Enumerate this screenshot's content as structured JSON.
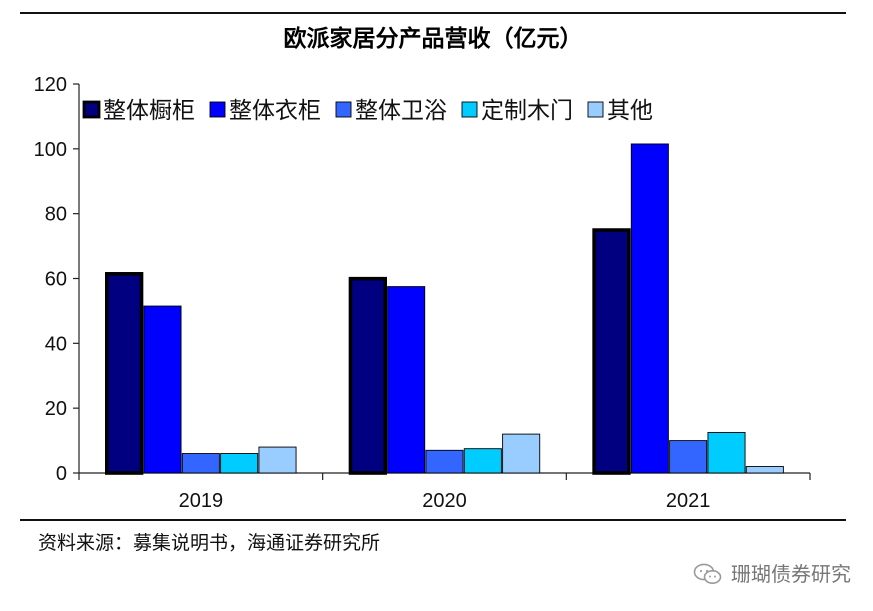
{
  "chart_data": {
    "type": "bar",
    "title": "欧派家居分产品营收（亿元）",
    "xlabel": "",
    "ylabel": "",
    "categories": [
      "2019",
      "2020",
      "2021"
    ],
    "ylim": [
      0,
      120
    ],
    "yticks": [
      0,
      20,
      40,
      60,
      80,
      100,
      120
    ],
    "grid": false,
    "legend_position": "top-left",
    "series": [
      {
        "name": "整体橱柜",
        "color": "#000080",
        "values": [
          62,
          60.5,
          75.5
        ]
      },
      {
        "name": "整体衣柜",
        "color": "#0000ff",
        "values": [
          51.5,
          57.5,
          101.5
        ]
      },
      {
        "name": "整体卫浴",
        "color": "#3366ff",
        "values": [
          6,
          7,
          10
        ]
      },
      {
        "name": "定制木门",
        "color": "#00ccff",
        "values": [
          6,
          7.5,
          12.5
        ]
      },
      {
        "name": "其他",
        "color": "#99ccff",
        "values": [
          8,
          12,
          2
        ]
      }
    ]
  },
  "source_text": "资料来源：募集说明书，海通证券研究所",
  "watermark_text": "珊瑚债券研究"
}
